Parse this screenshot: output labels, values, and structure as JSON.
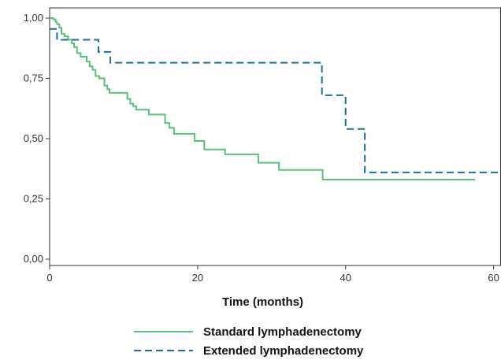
{
  "chart_data": {
    "type": "line",
    "xlabel": "Time (months)",
    "ylabel": "",
    "xlim": [
      0,
      61
    ],
    "ylim": [
      0,
      1
    ],
    "x_ticks": [
      0,
      20,
      40,
      60
    ],
    "x_tick_labels": [
      "0",
      "20",
      "40",
      "60"
    ],
    "y_ticks": [
      0,
      0.25,
      0.5,
      0.75,
      1.0
    ],
    "y_tick_labels": [
      "0,00",
      "0,25",
      "0,50",
      "0,75",
      "1,00"
    ],
    "grid": false,
    "legend_position": "bottom-center",
    "step": true,
    "series": [
      {
        "name": "Standard lymphadenectomy",
        "color": "#5cbf7f",
        "dash": "solid",
        "x": [
          0,
          0.5,
          0.8,
          1.0,
          1.3,
          1.6,
          2.0,
          2.5,
          3.0,
          3.3,
          3.7,
          4.2,
          5.0,
          5.4,
          5.8,
          6.2,
          6.7,
          7.4,
          7.8,
          8.1,
          8.4,
          10.5,
          10.9,
          11.3,
          11.7,
          13.4,
          15.6,
          16.2,
          16.8,
          19.6,
          20.9,
          23.7,
          28.2,
          31.0,
          36.9,
          57.5
        ],
        "y": [
          1.0,
          0.995,
          0.985,
          0.975,
          0.96,
          0.935,
          0.925,
          0.91,
          0.895,
          0.88,
          0.855,
          0.84,
          0.82,
          0.8,
          0.785,
          0.76,
          0.75,
          0.72,
          0.705,
          0.69,
          0.69,
          0.665,
          0.645,
          0.635,
          0.62,
          0.6,
          0.565,
          0.545,
          0.52,
          0.49,
          0.455,
          0.435,
          0.4,
          0.37,
          0.33,
          0.33
        ]
      },
      {
        "name": "Extended lymphadenectomy",
        "color": "#1b6e96",
        "dash": "dashed",
        "x": [
          0,
          1.0,
          6.6,
          8.2,
          36.8,
          40.0,
          42.6,
          61
        ],
        "y": [
          0.955,
          0.91,
          0.86,
          0.815,
          0.68,
          0.54,
          0.36,
          0.36
        ]
      }
    ]
  }
}
